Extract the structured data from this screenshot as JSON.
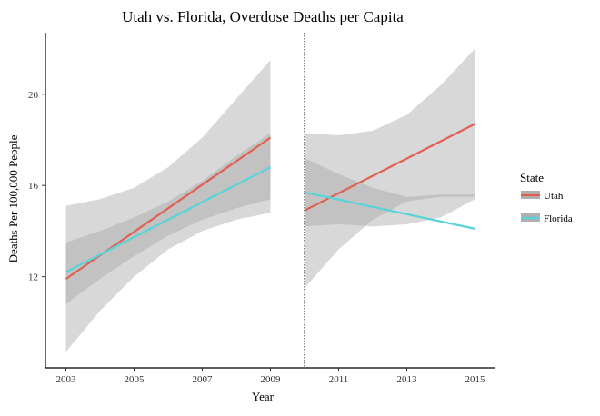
{
  "chart_data": {
    "type": "line",
    "title": "Utah vs. Florida, Overdose Deaths per Capita",
    "xlabel": "Year",
    "ylabel": "Deaths Per 100,000 People",
    "xlim": [
      2002.4,
      2015.6
    ],
    "ylim": [
      8.0,
      22.7
    ],
    "x_ticks": [
      2003,
      2005,
      2007,
      2009,
      2011,
      2013,
      2015
    ],
    "y_ticks": [
      12,
      16,
      20
    ],
    "policy_line_x": 2010,
    "grid": false,
    "legend": {
      "title": "State",
      "position": "right"
    },
    "series": [
      {
        "name": "Utah",
        "color": "#e06152",
        "segments": [
          {
            "x": [
              2003,
              2009
            ],
            "y": [
              11.9,
              18.1
            ],
            "band_outer": {
              "x": [
                2003,
                2004,
                2005,
                2006,
                2007,
                2008,
                2009
              ],
              "lower": [
                10.8,
                11.9,
                12.9,
                13.8,
                14.5,
                15.0,
                15.4
              ],
              "upper": [
                13.5,
                14.0,
                14.6,
                15.3,
                16.2,
                17.3,
                18.3
              ]
            }
          },
          {
            "x": [
              2010,
              2015
            ],
            "y": [
              14.9,
              18.7
            ],
            "band_outer": {
              "x": [
                2010,
                2011,
                2012,
                2013,
                2014,
                2015
              ],
              "lower": [
                14.2,
                14.3,
                14.2,
                14.3,
                14.6,
                15.4
              ],
              "upper": [
                18.3,
                18.2,
                18.4,
                19.1,
                20.4,
                22.0
              ]
            }
          }
        ]
      },
      {
        "name": "Florida",
        "color": "#56d4d9",
        "segments": [
          {
            "x": [
              2003,
              2009
            ],
            "y": [
              12.2,
              16.8
            ],
            "band_outer": {
              "x": [
                2003,
                2004,
                2005,
                2006,
                2007,
                2008,
                2009
              ],
              "lower": [
                8.7,
                10.5,
                12.0,
                13.2,
                14.0,
                14.5,
                14.8
              ],
              "upper": [
                15.1,
                15.4,
                15.9,
                16.8,
                18.1,
                19.8,
                21.5
              ]
            }
          },
          {
            "x": [
              2010,
              2015
            ],
            "y": [
              15.7,
              14.1
            ],
            "band_outer": {
              "x": [
                2010,
                2011,
                2012,
                2013,
                2014,
                2015
              ],
              "lower": [
                11.5,
                13.2,
                14.5,
                15.3,
                15.5,
                15.5
              ],
              "upper": [
                17.2,
                16.5,
                15.9,
                15.5,
                15.6,
                15.6
              ]
            }
          }
        ]
      }
    ]
  },
  "colors": {
    "band_fill": "#a8a8a8",
    "policy_line": "#000000"
  }
}
